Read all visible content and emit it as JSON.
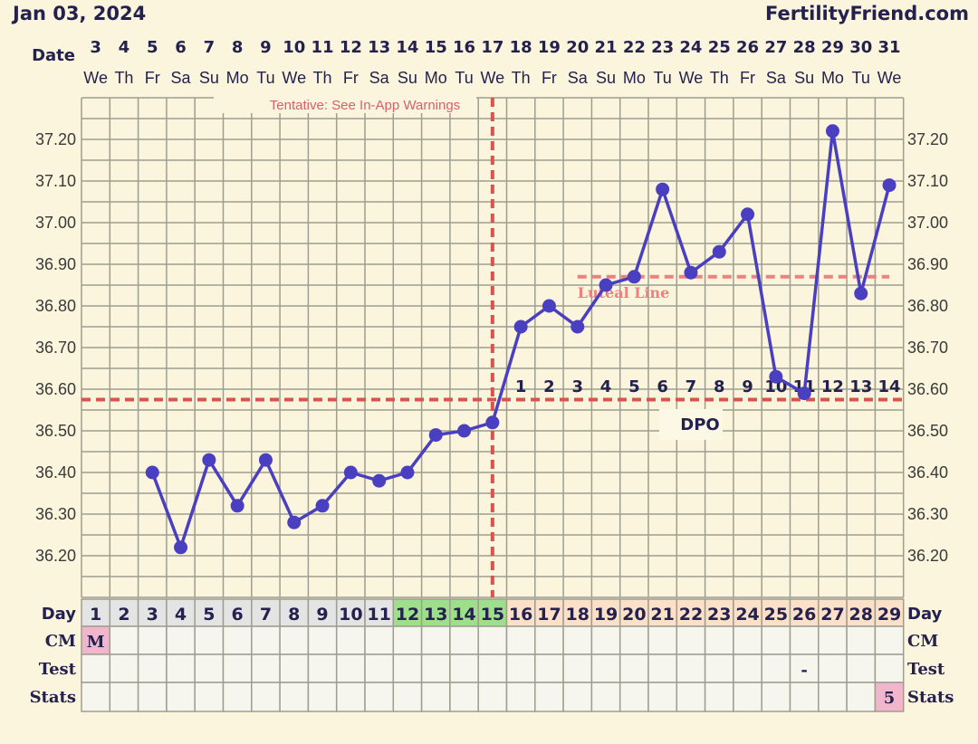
{
  "header": {
    "date": "Jan 03, 2024",
    "brand": "FertilityFriend.com"
  },
  "labels": {
    "date": "Date",
    "day": "Day",
    "cm": "CM",
    "test": "Test",
    "stats": "Stats",
    "dpo": "DPO",
    "tentative": "Tentative: See In-App Warnings",
    "luteal": "Luteal Line"
  },
  "colors": {
    "background": "#faf5dc",
    "line": "#4a3fc0",
    "coverline": "#d9534f",
    "luteal": "#f08080",
    "fertile": "#9ee08a",
    "luteal_days": "#fde0c8",
    "menses": "#f2b6cc",
    "grid": "#9e9e90"
  },
  "chart_data": {
    "type": "line",
    "ylim": [
      36.1,
      37.3
    ],
    "yticks": [
      "37.20",
      "37.10",
      "37.00",
      "36.90",
      "36.80",
      "36.70",
      "36.60",
      "36.50",
      "36.40",
      "36.30",
      "36.20"
    ],
    "dates": [
      "3",
      "4",
      "5",
      "6",
      "7",
      "8",
      "9",
      "10",
      "11",
      "12",
      "13",
      "14",
      "15",
      "16",
      "17",
      "18",
      "19",
      "20",
      "21",
      "22",
      "23",
      "24",
      "25",
      "26",
      "27",
      "28",
      "29",
      "30",
      "31"
    ],
    "weekdays": [
      "We",
      "Th",
      "Fr",
      "Sa",
      "Su",
      "Mo",
      "Tu",
      "We",
      "Th",
      "Fr",
      "Sa",
      "Su",
      "Mo",
      "Tu",
      "We",
      "Th",
      "Fr",
      "Sa",
      "Su",
      "Mo",
      "Tu",
      "We",
      "Th",
      "Fr",
      "Sa",
      "Su",
      "Mo",
      "Tu",
      "We"
    ],
    "cycle_days": [
      "1",
      "2",
      "3",
      "4",
      "5",
      "6",
      "7",
      "8",
      "9",
      "10",
      "11",
      "12",
      "13",
      "14",
      "15",
      "16",
      "17",
      "18",
      "19",
      "20",
      "21",
      "22",
      "23",
      "24",
      "25",
      "26",
      "27",
      "28",
      "29"
    ],
    "temperatures": [
      null,
      null,
      36.4,
      36.22,
      36.43,
      36.32,
      36.43,
      36.28,
      36.32,
      36.4,
      36.38,
      36.4,
      36.49,
      36.5,
      36.52,
      36.75,
      36.8,
      36.75,
      36.85,
      36.87,
      37.08,
      36.88,
      36.93,
      37.02,
      36.63,
      36.59,
      37.22,
      36.83,
      37.09
    ],
    "coverline": 36.575,
    "ovulation_day": 15,
    "luteal_line": {
      "value": 36.87,
      "from_day": 18,
      "to_day": 29
    },
    "fertile_days": [
      12,
      13,
      14,
      15
    ],
    "dpo": [
      "1",
      "2",
      "3",
      "4",
      "5",
      "6",
      "7",
      "8",
      "9",
      "10",
      "11",
      "12",
      "13",
      "14"
    ],
    "cm": {
      "1": "M"
    },
    "test": {
      "26": "-"
    },
    "stats": {
      "29": "5"
    }
  }
}
